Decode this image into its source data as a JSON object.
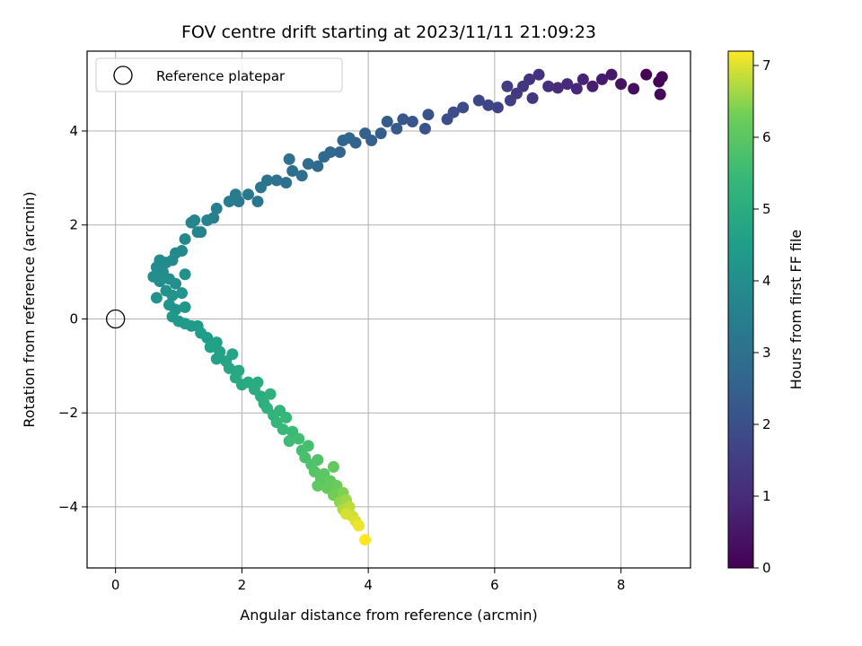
{
  "chart_data": {
    "type": "scatter",
    "title": "FOV centre drift starting at 2023/11/11 21:09:23",
    "xlabel": "Angular distance from reference (arcmin)",
    "ylabel": "Rotation from reference (arcmin)",
    "xlim": [
      -0.45,
      9.1
    ],
    "ylim": [
      -5.3,
      5.7
    ],
    "x_ticks": [
      0,
      2,
      4,
      6,
      8
    ],
    "y_ticks": [
      -4,
      -2,
      0,
      2,
      4
    ],
    "grid": true,
    "legend": {
      "placement": "top-left",
      "entries": [
        "Reference platepar"
      ]
    },
    "reference_point": {
      "x": 0,
      "y": 0
    },
    "colorbar": {
      "label": "Hours from first FF file",
      "range": [
        0,
        7.2
      ],
      "ticks": [
        0,
        1,
        2,
        3,
        4,
        5,
        6,
        7
      ],
      "colormap": "viridis"
    },
    "series": [
      {
        "name": "",
        "points": [
          {
            "x": 8.4,
            "y": 5.2,
            "t": 0.0
          },
          {
            "x": 8.65,
            "y": 5.15,
            "t": 0.05
          },
          {
            "x": 8.6,
            "y": 5.05,
            "t": 0.1
          },
          {
            "x": 8.62,
            "y": 4.78,
            "t": 0.15
          },
          {
            "x": 8.2,
            "y": 4.9,
            "t": 0.3
          },
          {
            "x": 8.0,
            "y": 5.0,
            "t": 0.4
          },
          {
            "x": 7.85,
            "y": 5.2,
            "t": 0.5
          },
          {
            "x": 7.7,
            "y": 5.1,
            "t": 0.6
          },
          {
            "x": 7.55,
            "y": 4.95,
            "t": 0.7
          },
          {
            "x": 7.4,
            "y": 5.1,
            "t": 0.8
          },
          {
            "x": 7.3,
            "y": 4.9,
            "t": 0.9
          },
          {
            "x": 7.15,
            "y": 5.0,
            "t": 0.95
          },
          {
            "x": 7.0,
            "y": 4.92,
            "t": 1.0
          },
          {
            "x": 6.85,
            "y": 4.95,
            "t": 1.1
          },
          {
            "x": 6.7,
            "y": 5.2,
            "t": 1.15
          },
          {
            "x": 6.55,
            "y": 5.1,
            "t": 1.2
          },
          {
            "x": 6.45,
            "y": 4.95,
            "t": 1.25
          },
          {
            "x": 6.6,
            "y": 4.7,
            "t": 1.3
          },
          {
            "x": 6.35,
            "y": 4.8,
            "t": 1.35
          },
          {
            "x": 6.2,
            "y": 4.95,
            "t": 1.45
          },
          {
            "x": 6.25,
            "y": 4.65,
            "t": 1.5
          },
          {
            "x": 6.05,
            "y": 4.5,
            "t": 1.6
          },
          {
            "x": 5.9,
            "y": 4.55,
            "t": 1.7
          },
          {
            "x": 5.75,
            "y": 4.65,
            "t": 1.75
          },
          {
            "x": 5.5,
            "y": 4.5,
            "t": 1.85
          },
          {
            "x": 5.35,
            "y": 4.4,
            "t": 1.9
          },
          {
            "x": 5.25,
            "y": 4.25,
            "t": 1.95
          },
          {
            "x": 4.95,
            "y": 4.35,
            "t": 2.05
          },
          {
            "x": 4.9,
            "y": 4.05,
            "t": 2.1
          },
          {
            "x": 4.7,
            "y": 4.2,
            "t": 2.15
          },
          {
            "x": 4.55,
            "y": 4.25,
            "t": 2.2
          },
          {
            "x": 4.45,
            "y": 4.05,
            "t": 2.3
          },
          {
            "x": 4.3,
            "y": 4.2,
            "t": 2.35
          },
          {
            "x": 4.2,
            "y": 3.95,
            "t": 2.4
          },
          {
            "x": 4.05,
            "y": 3.8,
            "t": 2.45
          },
          {
            "x": 3.95,
            "y": 3.95,
            "t": 2.5
          },
          {
            "x": 3.8,
            "y": 3.75,
            "t": 2.55
          },
          {
            "x": 3.7,
            "y": 3.85,
            "t": 2.6
          },
          {
            "x": 3.55,
            "y": 3.55,
            "t": 2.65
          },
          {
            "x": 3.6,
            "y": 3.8,
            "t": 2.68
          },
          {
            "x": 3.4,
            "y": 3.55,
            "t": 2.7
          },
          {
            "x": 3.3,
            "y": 3.45,
            "t": 2.75
          },
          {
            "x": 3.2,
            "y": 3.25,
            "t": 2.8
          },
          {
            "x": 3.05,
            "y": 3.3,
            "t": 2.85
          },
          {
            "x": 2.95,
            "y": 3.05,
            "t": 2.9
          },
          {
            "x": 2.8,
            "y": 3.15,
            "t": 2.95
          },
          {
            "x": 2.75,
            "y": 3.4,
            "t": 2.97
          },
          {
            "x": 2.7,
            "y": 2.9,
            "t": 3.0
          },
          {
            "x": 2.55,
            "y": 2.95,
            "t": 3.05
          },
          {
            "x": 2.4,
            "y": 2.95,
            "t": 3.1
          },
          {
            "x": 2.3,
            "y": 2.8,
            "t": 3.15
          },
          {
            "x": 2.25,
            "y": 2.5,
            "t": 3.2
          },
          {
            "x": 2.1,
            "y": 2.65,
            "t": 3.25
          },
          {
            "x": 1.95,
            "y": 2.5,
            "t": 3.3
          },
          {
            "x": 1.9,
            "y": 2.65,
            "t": 3.35
          },
          {
            "x": 1.8,
            "y": 2.5,
            "t": 3.4
          },
          {
            "x": 1.6,
            "y": 2.35,
            "t": 3.45
          },
          {
            "x": 1.55,
            "y": 2.15,
            "t": 3.5
          },
          {
            "x": 1.45,
            "y": 2.1,
            "t": 3.55
          },
          {
            "x": 1.35,
            "y": 1.85,
            "t": 3.6
          },
          {
            "x": 1.25,
            "y": 2.1,
            "t": 3.65
          },
          {
            "x": 1.2,
            "y": 2.05,
            "t": 3.67
          },
          {
            "x": 1.3,
            "y": 1.85,
            "t": 3.7
          },
          {
            "x": 1.1,
            "y": 1.7,
            "t": 3.75
          },
          {
            "x": 1.05,
            "y": 1.45,
            "t": 3.8
          },
          {
            "x": 0.95,
            "y": 1.4,
            "t": 3.82
          },
          {
            "x": 0.9,
            "y": 1.25,
            "t": 3.85
          },
          {
            "x": 0.8,
            "y": 1.2,
            "t": 3.88
          },
          {
            "x": 0.7,
            "y": 1.25,
            "t": 3.9
          },
          {
            "x": 0.65,
            "y": 1.1,
            "t": 3.93
          },
          {
            "x": 0.75,
            "y": 1.0,
            "t": 3.95
          },
          {
            "x": 0.6,
            "y": 0.9,
            "t": 3.97
          },
          {
            "x": 0.7,
            "y": 0.8,
            "t": 4.0
          },
          {
            "x": 0.85,
            "y": 0.85,
            "t": 4.02
          },
          {
            "x": 0.95,
            "y": 0.75,
            "t": 4.05
          },
          {
            "x": 1.1,
            "y": 0.95,
            "t": 4.07
          },
          {
            "x": 0.8,
            "y": 0.6,
            "t": 4.1
          },
          {
            "x": 0.65,
            "y": 0.45,
            "t": 4.12
          },
          {
            "x": 0.9,
            "y": 0.5,
            "t": 4.15
          },
          {
            "x": 1.05,
            "y": 0.55,
            "t": 4.17
          },
          {
            "x": 0.85,
            "y": 0.3,
            "t": 4.2
          },
          {
            "x": 0.95,
            "y": 0.2,
            "t": 4.22
          },
          {
            "x": 1.1,
            "y": 0.25,
            "t": 4.25
          },
          {
            "x": 0.9,
            "y": 0.05,
            "t": 4.3
          },
          {
            "x": 1.0,
            "y": -0.05,
            "t": 4.33
          },
          {
            "x": 1.1,
            "y": -0.1,
            "t": 4.36
          },
          {
            "x": 1.2,
            "y": -0.15,
            "t": 4.4
          },
          {
            "x": 1.3,
            "y": -0.15,
            "t": 4.45
          },
          {
            "x": 1.35,
            "y": -0.3,
            "t": 4.5
          },
          {
            "x": 1.45,
            "y": -0.4,
            "t": 4.55
          },
          {
            "x": 1.6,
            "y": -0.5,
            "t": 4.6
          },
          {
            "x": 1.5,
            "y": -0.6,
            "t": 4.62
          },
          {
            "x": 1.65,
            "y": -0.7,
            "t": 4.65
          },
          {
            "x": 1.6,
            "y": -0.85,
            "t": 4.68
          },
          {
            "x": 1.75,
            "y": -0.9,
            "t": 4.72
          },
          {
            "x": 1.85,
            "y": -0.75,
            "t": 4.75
          },
          {
            "x": 1.8,
            "y": -1.05,
            "t": 4.78
          },
          {
            "x": 1.95,
            "y": -1.1,
            "t": 4.82
          },
          {
            "x": 1.9,
            "y": -1.25,
            "t": 4.85
          },
          {
            "x": 2.0,
            "y": -1.4,
            "t": 4.9
          },
          {
            "x": 2.1,
            "y": -1.35,
            "t": 4.93
          },
          {
            "x": 2.2,
            "y": -1.5,
            "t": 4.97
          },
          {
            "x": 2.25,
            "y": -1.35,
            "t": 5.0
          },
          {
            "x": 2.3,
            "y": -1.65,
            "t": 5.05
          },
          {
            "x": 2.35,
            "y": -1.8,
            "t": 5.1
          },
          {
            "x": 2.45,
            "y": -1.6,
            "t": 5.15
          },
          {
            "x": 2.4,
            "y": -1.9,
            "t": 5.2
          },
          {
            "x": 2.5,
            "y": -2.05,
            "t": 5.25
          },
          {
            "x": 2.6,
            "y": -1.95,
            "t": 5.3
          },
          {
            "x": 2.55,
            "y": -2.2,
            "t": 5.35
          },
          {
            "x": 2.7,
            "y": -2.1,
            "t": 5.4
          },
          {
            "x": 2.65,
            "y": -2.35,
            "t": 5.45
          },
          {
            "x": 2.8,
            "y": -2.4,
            "t": 5.5
          },
          {
            "x": 2.75,
            "y": -2.6,
            "t": 5.55
          },
          {
            "x": 2.9,
            "y": -2.55,
            "t": 5.6
          },
          {
            "x": 2.95,
            "y": -2.8,
            "t": 5.65
          },
          {
            "x": 3.05,
            "y": -2.7,
            "t": 5.7
          },
          {
            "x": 3.0,
            "y": -2.95,
            "t": 5.75
          },
          {
            "x": 3.1,
            "y": -3.1,
            "t": 5.8
          },
          {
            "x": 3.2,
            "y": -3.0,
            "t": 5.85
          },
          {
            "x": 3.15,
            "y": -3.25,
            "t": 5.9
          },
          {
            "x": 3.25,
            "y": -3.4,
            "t": 5.95
          },
          {
            "x": 3.3,
            "y": -3.3,
            "t": 6.0
          },
          {
            "x": 3.2,
            "y": -3.55,
            "t": 6.05
          },
          {
            "x": 3.4,
            "y": -3.45,
            "t": 6.1
          },
          {
            "x": 3.45,
            "y": -3.15,
            "t": 6.12
          },
          {
            "x": 3.35,
            "y": -3.6,
            "t": 6.15
          },
          {
            "x": 3.5,
            "y": -3.55,
            "t": 6.2
          },
          {
            "x": 3.45,
            "y": -3.75,
            "t": 6.3
          },
          {
            "x": 3.6,
            "y": -3.7,
            "t": 6.4
          },
          {
            "x": 3.55,
            "y": -3.9,
            "t": 6.5
          },
          {
            "x": 3.65,
            "y": -3.85,
            "t": 6.6
          },
          {
            "x": 3.6,
            "y": -4.05,
            "t": 6.7
          },
          {
            "x": 3.7,
            "y": -4.0,
            "t": 6.8
          },
          {
            "x": 3.75,
            "y": -4.2,
            "t": 6.9
          },
          {
            "x": 3.65,
            "y": -4.15,
            "t": 6.95
          },
          {
            "x": 3.8,
            "y": -4.3,
            "t": 7.0
          },
          {
            "x": 3.85,
            "y": -4.4,
            "t": 7.1
          },
          {
            "x": 3.95,
            "y": -4.7,
            "t": 7.2
          }
        ]
      }
    ]
  }
}
